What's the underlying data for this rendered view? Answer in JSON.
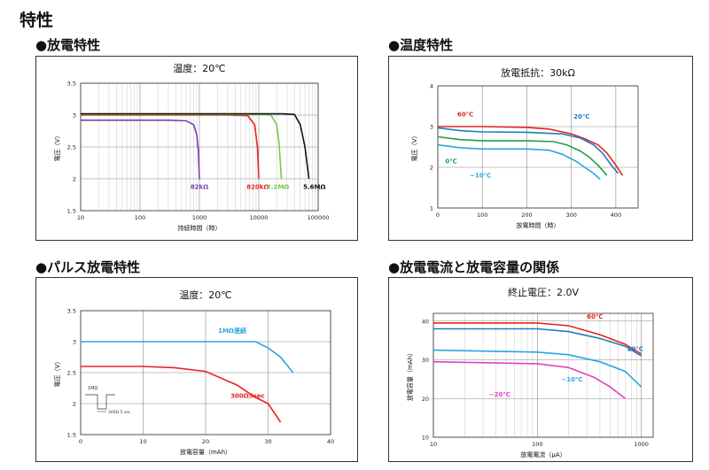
{
  "page_title": "特性",
  "sections": [
    {
      "title": "●放電特性"
    },
    {
      "title": "●温度特性"
    },
    {
      "title": "●パルス放電特性"
    },
    {
      "title": "●放電電流と放電容量の関係"
    }
  ],
  "chart_data": [
    {
      "type": "line",
      "title": "温度：20℃",
      "xlabel": "持続時間（時）",
      "ylabel": "電圧（V）",
      "xscale": "log",
      "xlim": [
        10,
        100000
      ],
      "ylim": [
        1.5,
        3.5
      ],
      "xticks": [
        "10",
        "100",
        "1000",
        "10000",
        "100000"
      ],
      "yticks": [
        "1.5",
        "2",
        "2.5",
        "3",
        "3.5"
      ],
      "grid": true,
      "series": [
        {
          "name": "82kΩ",
          "color": "#7d3fb0",
          "x": [
            10,
            300,
            600,
            800,
            900,
            960,
            1000
          ],
          "y": [
            2.92,
            2.92,
            2.91,
            2.85,
            2.7,
            2.45,
            1.99
          ]
        },
        {
          "name": "820kΩ",
          "color": "#e52420",
          "x": [
            10,
            3000,
            6500,
            8500,
            9500,
            10000
          ],
          "y": [
            3.0,
            3.0,
            2.99,
            2.85,
            2.5,
            2.0
          ]
        },
        {
          "name": "2.2MΩ",
          "color": "#7cc447",
          "x": [
            10,
            10000,
            16000,
            20000,
            22000,
            24000
          ],
          "y": [
            3.01,
            3.01,
            3.0,
            2.85,
            2.55,
            2.0
          ]
        },
        {
          "name": "5.6MΩ",
          "color": "#111111",
          "x": [
            10,
            25000,
            40000,
            50000,
            60000,
            70000
          ],
          "y": [
            3.02,
            3.02,
            3.01,
            2.85,
            2.5,
            2.0
          ]
        }
      ]
    },
    {
      "type": "line",
      "title": "放電抵抗：30kΩ",
      "xlabel": "放電時間（時）",
      "ylabel": "電圧（V）",
      "xlim": [
        0,
        450
      ],
      "ylim": [
        1,
        4
      ],
      "xticks": [
        "0",
        "100",
        "200",
        "300",
        "400"
      ],
      "yticks": [
        "1",
        "2",
        "3",
        "4"
      ],
      "grid": true,
      "series": [
        {
          "name": "60℃",
          "color": "#e52420",
          "x": [
            0,
            100,
            200,
            250,
            300,
            330,
            360,
            380,
            400,
            415
          ],
          "y": [
            3.0,
            3.0,
            2.98,
            2.94,
            2.82,
            2.7,
            2.55,
            2.35,
            2.05,
            1.8
          ]
        },
        {
          "name": "20℃",
          "color": "#1e7bbf",
          "x": [
            0,
            50,
            100,
            200,
            280,
            320,
            350,
            370,
            390,
            405
          ],
          "y": [
            2.97,
            2.9,
            2.87,
            2.86,
            2.82,
            2.72,
            2.55,
            2.35,
            2.05,
            1.85
          ]
        },
        {
          "name": "0℃",
          "color": "#1f9e4c",
          "x": [
            0,
            50,
            100,
            200,
            260,
            290,
            320,
            340,
            360,
            380
          ],
          "y": [
            2.75,
            2.68,
            2.65,
            2.65,
            2.63,
            2.55,
            2.4,
            2.25,
            2.05,
            1.8
          ]
        },
        {
          "name": "−10℃",
          "color": "#2aa6de",
          "x": [
            0,
            50,
            100,
            200,
            250,
            280,
            310,
            330,
            350,
            365
          ],
          "y": [
            2.55,
            2.48,
            2.45,
            2.45,
            2.42,
            2.32,
            2.15,
            2.0,
            1.85,
            1.7
          ]
        }
      ]
    },
    {
      "type": "line",
      "title": "温度：20℃",
      "xlabel": "放電容量（mAh）",
      "ylabel": "電圧（V）",
      "xlim": [
        0,
        40
      ],
      "ylim": [
        1.5,
        3.5
      ],
      "xticks": [
        "0",
        "10",
        "20",
        "30",
        "40"
      ],
      "yticks": [
        "1.5",
        "2",
        "2.5",
        "3",
        "3.5"
      ],
      "grid": true,
      "series": [
        {
          "name": "1MΩ連続",
          "color": "#2aa6de",
          "x": [
            0,
            10,
            20,
            28,
            30,
            32,
            34
          ],
          "y": [
            3.0,
            3.0,
            3.0,
            3.0,
            2.9,
            2.75,
            2.5
          ]
        },
        {
          "name": "300Ω5sec",
          "color": "#e52420",
          "x": [
            0,
            10,
            15,
            20,
            25,
            28,
            30,
            31,
            32
          ],
          "y": [
            2.6,
            2.6,
            2.58,
            2.52,
            2.3,
            2.1,
            2.0,
            1.85,
            1.7
          ]
        }
      ],
      "inset": {
        "top_label": "1MΩ",
        "bottom_label": "300Ω 5 sec"
      }
    },
    {
      "type": "line",
      "title": "終止電圧：2.0V",
      "xlabel": "放電電流（μA）",
      "ylabel": "放電容量（mAh）",
      "xscale": "log",
      "xlim": [
        10,
        1300
      ],
      "ylim": [
        10,
        42
      ],
      "xticks": [
        "10",
        "100",
        "1000"
      ],
      "yticks": [
        "10",
        "20",
        "30",
        "40"
      ],
      "grid": true,
      "series": [
        {
          "name": "60℃",
          "color": "#e52420",
          "x": [
            10,
            100,
            200,
            400,
            700,
            1000
          ],
          "y": [
            39.5,
            39.5,
            38.8,
            36.5,
            34,
            31.5
          ]
        },
        {
          "name": "20℃",
          "color": "#1e7bbf",
          "x": [
            10,
            100,
            200,
            400,
            700,
            1000
          ],
          "y": [
            38,
            38,
            37.3,
            35.5,
            33.5,
            31
          ]
        },
        {
          "name": "−10℃",
          "color": "#2aa6de",
          "x": [
            10,
            100,
            200,
            400,
            700,
            1000
          ],
          "y": [
            32.5,
            32,
            31.3,
            29.5,
            27,
            23
          ]
        },
        {
          "name": "−20℃",
          "color": "#e040c0",
          "x": [
            10,
            100,
            200,
            350,
            500,
            700
          ],
          "y": [
            29.5,
            29,
            28,
            25.5,
            23,
            20
          ]
        }
      ]
    }
  ]
}
